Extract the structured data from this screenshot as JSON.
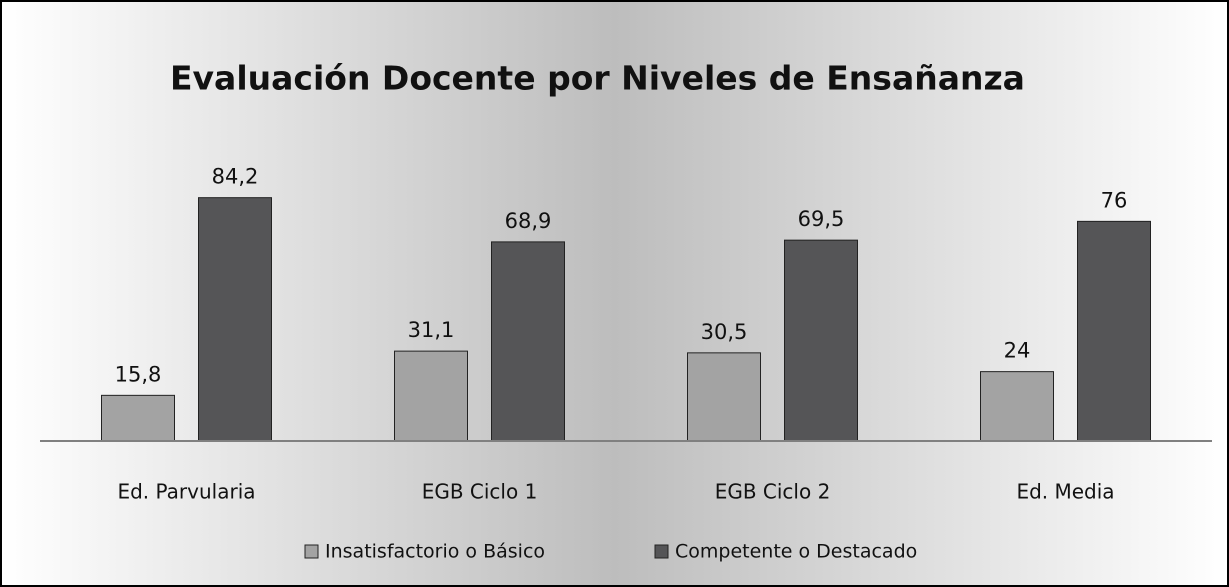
{
  "chart_data": {
    "type": "bar",
    "title": "Evaluación Docente por Niveles de Ensañanza",
    "categories": [
      "Ed. Parvularia",
      "EGB Ciclo 1",
      "EGB Ciclo 2",
      "Ed. Media"
    ],
    "series": [
      {
        "name": "Insatisfactorio o Básico",
        "color": "#a3a3a3",
        "values": [
          15.8,
          31.1,
          30.5,
          24
        ],
        "value_labels": [
          "15,8",
          "31,1",
          "30,5",
          "24"
        ]
      },
      {
        "name": "Competente o Destacado",
        "color": "#555557",
        "values": [
          84.2,
          68.9,
          69.5,
          76
        ],
        "value_labels": [
          "84,2",
          "68,9",
          "69,5",
          "76"
        ]
      }
    ],
    "ylim": [
      0,
      100
    ],
    "legend": "bottom"
  }
}
